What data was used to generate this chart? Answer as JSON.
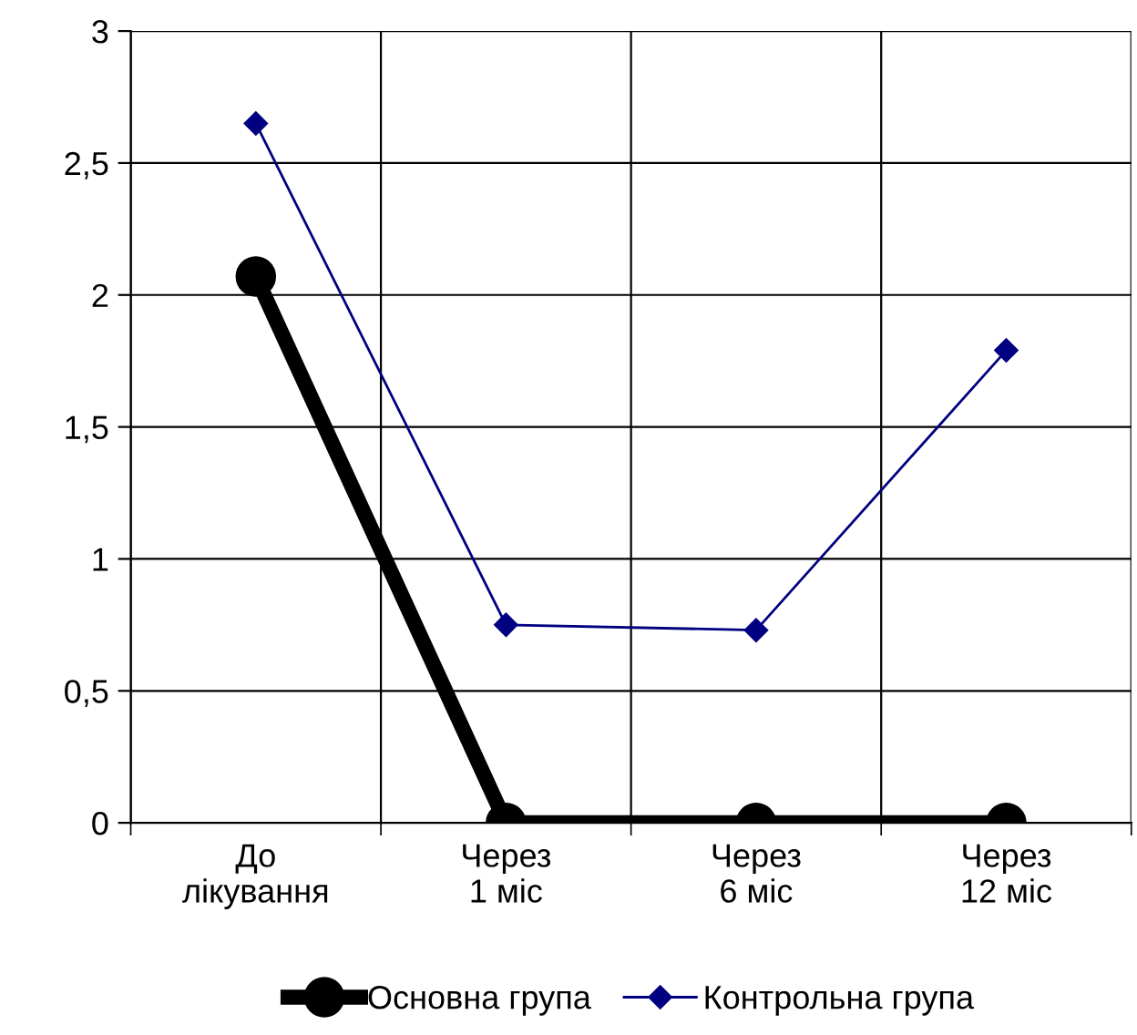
{
  "chart_data": {
    "type": "line",
    "categories": [
      "До\nлікування",
      "Через\n1 міс",
      "Через\n6 міс",
      "Через\n12 міс"
    ],
    "series": [
      {
        "name": "Основна група",
        "color": "#000000",
        "marker": "circle",
        "values": [
          2.07,
          0,
          0,
          0
        ]
      },
      {
        "name": "Контрольна група",
        "color": "#000080",
        "marker": "diamond",
        "values": [
          2.65,
          0.75,
          0.73,
          1.79
        ]
      }
    ],
    "ylim": [
      0,
      3
    ],
    "yticks": [
      0,
      {
        "value": 0.5,
        "label": "0,5"
      },
      1,
      {
        "value": 1.5,
        "label": "1,5"
      },
      2,
      {
        "value": 2.5,
        "label": "2,5"
      },
      3
    ],
    "grid": true,
    "legend": "bottom",
    "line_style": "solid"
  }
}
